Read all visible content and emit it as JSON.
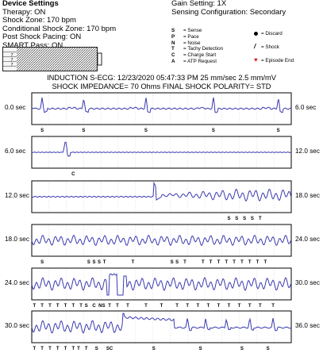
{
  "header": {
    "left": {
      "title": "Device Settings",
      "lines": [
        "Therapy: ON",
        "Shock Zone: 170 bpm",
        "Conditional Shock Zone: 170 bpm",
        "Post Shock Pacing: ON",
        "SMART Pass: ON"
      ]
    },
    "right": {
      "lines": [
        "Gain Setting: 1X",
        "Sensing Configuration: Secondary"
      ]
    }
  },
  "battery_marks": [
    "",
    "7",
    "7",
    "7",
    ""
  ],
  "legend": {
    "markers": [
      {
        "code": "S",
        "label": "= Sense"
      },
      {
        "code": "P",
        "label": "= Pace"
      },
      {
        "code": "N",
        "label": "= Noise"
      },
      {
        "code": "T",
        "label": "= Tachy Detection"
      },
      {
        "code": "C",
        "label": "= Charge Start"
      },
      {
        "code": "A",
        "label": "= ATP Request"
      }
    ],
    "symbols": [
      {
        "icon": "dot-icon",
        "label": "= Discard"
      },
      {
        "icon": "shock-icon",
        "label": "= Shock"
      },
      {
        "icon": "heart-icon",
        "label": "= Episode End"
      }
    ]
  },
  "episode": {
    "line1": "INDUCTION S-ECG: 12/23/2020 05:47:33 PM 25 mm/sec 2.5 mm/mV",
    "line2": "SHOCK IMPEDANCE= 70 Ohms FINAL SHOCK POLARITY= STD"
  },
  "colors": {
    "trace": "#3a3ab0",
    "grid": "#c8c8c8",
    "tick": "#888888"
  },
  "strips": [
    {
      "start": "0.0 sec",
      "end": "6.0 sec",
      "markers": [
        {
          "t": 0.04,
          "m": "S"
        },
        {
          "t": 0.2,
          "m": "S"
        },
        {
          "t": 0.44,
          "m": "S"
        },
        {
          "t": 0.7,
          "m": "S"
        },
        {
          "t": 0.95,
          "m": "S"
        }
      ]
    },
    {
      "start": "6.0 sec",
      "end": "12.0 sec",
      "markers": [
        {
          "t": 0.16,
          "m": "C"
        }
      ]
    },
    {
      "start": "12.0 sec",
      "end": "18.0 sec",
      "markers": [
        {
          "t": 0.76,
          "m": "S"
        },
        {
          "t": 0.79,
          "m": "S"
        },
        {
          "t": 0.82,
          "m": "S"
        },
        {
          "t": 0.85,
          "m": "S"
        },
        {
          "t": 0.88,
          "m": "T"
        }
      ]
    },
    {
      "start": "18.0 sec",
      "end": "24.0 sec",
      "markers": [
        {
          "t": 0.04,
          "m": "S"
        },
        {
          "t": 0.22,
          "m": "S"
        },
        {
          "t": 0.24,
          "m": "S"
        },
        {
          "t": 0.26,
          "m": "S"
        },
        {
          "t": 0.28,
          "m": "T"
        },
        {
          "t": 0.39,
          "m": "T"
        },
        {
          "t": 0.54,
          "m": "S"
        },
        {
          "t": 0.56,
          "m": "S"
        },
        {
          "t": 0.59,
          "m": "T"
        },
        {
          "t": 0.66,
          "m": "T"
        },
        {
          "t": 0.69,
          "m": "T"
        },
        {
          "t": 0.72,
          "m": "T"
        },
        {
          "t": 0.75,
          "m": "T"
        },
        {
          "t": 0.78,
          "m": "T"
        },
        {
          "t": 0.81,
          "m": "T"
        },
        {
          "t": 0.84,
          "m": "T"
        },
        {
          "t": 0.87,
          "m": "T"
        },
        {
          "t": 0.9,
          "m": "T"
        }
      ]
    },
    {
      "start": "24.0 sec",
      "end": "30.0 sec",
      "markers": [
        {
          "t": 0.01,
          "m": "T"
        },
        {
          "t": 0.04,
          "m": "T"
        },
        {
          "t": 0.07,
          "m": "T"
        },
        {
          "t": 0.1,
          "m": "T"
        },
        {
          "t": 0.13,
          "m": "T"
        },
        {
          "t": 0.16,
          "m": "T"
        },
        {
          "t": 0.19,
          "m": "T"
        },
        {
          "t": 0.21,
          "m": "S"
        },
        {
          "t": 0.24,
          "m": "C"
        },
        {
          "t": 0.27,
          "m": "NS"
        },
        {
          "t": 0.3,
          "m": "T"
        },
        {
          "t": 0.33,
          "m": "T"
        },
        {
          "t": 0.37,
          "m": "T"
        },
        {
          "t": 0.44,
          "m": "T"
        },
        {
          "t": 0.5,
          "m": "T"
        },
        {
          "t": 0.56,
          "m": "T"
        },
        {
          "t": 0.6,
          "m": "T"
        },
        {
          "t": 0.64,
          "m": "T"
        },
        {
          "t": 0.68,
          "m": "T"
        },
        {
          "t": 0.72,
          "m": "T"
        },
        {
          "t": 0.76,
          "m": "T"
        },
        {
          "t": 0.8,
          "m": "T"
        },
        {
          "t": 0.84,
          "m": "T"
        },
        {
          "t": 0.88,
          "m": "T"
        },
        {
          "t": 0.93,
          "m": "T"
        }
      ]
    },
    {
      "start": "30.0 sec",
      "end": "36.0 sec",
      "markers": [
        {
          "t": 0.01,
          "m": "T"
        },
        {
          "t": 0.04,
          "m": "T"
        },
        {
          "t": 0.07,
          "m": "T"
        },
        {
          "t": 0.1,
          "m": "T"
        },
        {
          "t": 0.13,
          "m": "T"
        },
        {
          "t": 0.16,
          "m": "T"
        },
        {
          "t": 0.18,
          "m": "T"
        },
        {
          "t": 0.21,
          "m": "T"
        },
        {
          "t": 0.25,
          "m": "S"
        },
        {
          "t": 0.3,
          "m": "SC"
        },
        {
          "t": 0.47,
          "m": "S"
        },
        {
          "t": 0.65,
          "m": "S"
        },
        {
          "t": 0.81,
          "m": "S"
        },
        {
          "t": 0.91,
          "m": "S"
        }
      ]
    }
  ]
}
